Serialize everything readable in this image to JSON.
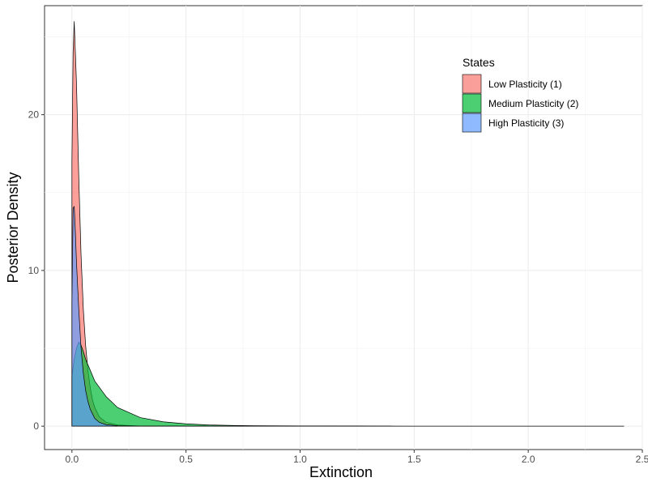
{
  "chart_data": {
    "type": "area",
    "title": "",
    "xlabel": "Extinction",
    "ylabel": "Posterior Density",
    "xlim": [
      -0.12,
      2.5
    ],
    "ylim": [
      -1.5,
      27
    ],
    "x_ticks": [
      0.0,
      0.5,
      1.0,
      1.5,
      2.0,
      2.5
    ],
    "x_tick_labels": [
      "0.0",
      "0.5",
      "1.0",
      "1.5",
      "2.0",
      "2.5"
    ],
    "y_ticks": [
      0,
      10,
      20
    ],
    "y_tick_labels": [
      "0",
      "10",
      "20"
    ],
    "grid": true,
    "legend": {
      "title": "States",
      "position": "top-right"
    },
    "series": [
      {
        "name": "Low Plasticity (1)",
        "color": "#F8766D",
        "points": [
          [
            0.0,
            17
          ],
          [
            0.005,
            24
          ],
          [
            0.01,
            26
          ],
          [
            0.02,
            22
          ],
          [
            0.03,
            16
          ],
          [
            0.04,
            11
          ],
          [
            0.05,
            7.5
          ],
          [
            0.06,
            5.2
          ],
          [
            0.07,
            3.6
          ],
          [
            0.08,
            2.5
          ],
          [
            0.09,
            1.7
          ],
          [
            0.1,
            1.2
          ],
          [
            0.12,
            0.6
          ],
          [
            0.15,
            0.25
          ],
          [
            0.2,
            0.08
          ],
          [
            0.3,
            0.01
          ],
          [
            1.4,
            0
          ]
        ]
      },
      {
        "name": "Medium Plasticity (2)",
        "color": "#00BA38",
        "points": [
          [
            0.0,
            3.2
          ],
          [
            0.01,
            4.3
          ],
          [
            0.02,
            5.0
          ],
          [
            0.03,
            5.4
          ],
          [
            0.04,
            5.2
          ],
          [
            0.05,
            4.8
          ],
          [
            0.06,
            4.3
          ],
          [
            0.08,
            3.6
          ],
          [
            0.1,
            2.9
          ],
          [
            0.15,
            1.9
          ],
          [
            0.2,
            1.2
          ],
          [
            0.3,
            0.55
          ],
          [
            0.4,
            0.28
          ],
          [
            0.5,
            0.15
          ],
          [
            0.6,
            0.08
          ],
          [
            0.7,
            0.05
          ],
          [
            0.8,
            0.03
          ],
          [
            1.0,
            0.015
          ],
          [
            1.5,
            0.005
          ],
          [
            2.42,
            0
          ]
        ]
      },
      {
        "name": "High Plasticity (3)",
        "color": "#619CFF",
        "points": [
          [
            0.0,
            8
          ],
          [
            0.005,
            14
          ],
          [
            0.01,
            14.1
          ],
          [
            0.015,
            12.5
          ],
          [
            0.02,
            10.5
          ],
          [
            0.03,
            7.5
          ],
          [
            0.04,
            5.0
          ],
          [
            0.05,
            3.4
          ],
          [
            0.06,
            2.3
          ],
          [
            0.07,
            1.6
          ],
          [
            0.08,
            1.1
          ],
          [
            0.1,
            0.5
          ],
          [
            0.12,
            0.25
          ],
          [
            0.15,
            0.1
          ],
          [
            0.2,
            0.03
          ],
          [
            0.3,
            0
          ],
          [
            1.28,
            0
          ]
        ]
      }
    ]
  }
}
